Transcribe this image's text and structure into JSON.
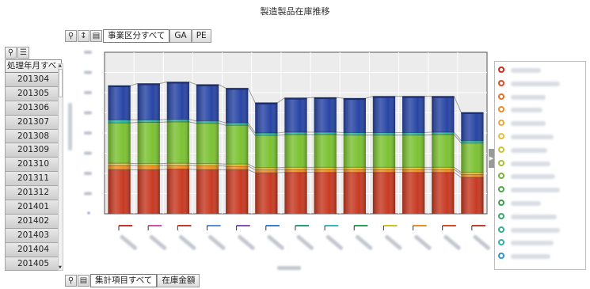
{
  "title": "製造製品在庫推移",
  "top_filter": {
    "dimension_label": "事業区分すべて",
    "chips": [
      "GA",
      "PE"
    ]
  },
  "bottom_filter": {
    "dimension_label": "集計項目すべて",
    "chip": "在庫金額"
  },
  "sidebar": {
    "header": "処理年月すべ",
    "items": [
      "201304",
      "201305",
      "201306",
      "201307",
      "201308",
      "201309",
      "201310",
      "201311",
      "201312",
      "201401",
      "201402",
      "201403",
      "201404",
      "201405"
    ]
  },
  "icons": {
    "magnify": "magnifier-icon",
    "sort": "sort-icon",
    "chart": "bar-chart-icon",
    "list": "list-icon"
  },
  "chart_data": {
    "type": "bar",
    "stacked": true,
    "categories": [
      "",
      "",
      "",
      "",
      "",
      "",
      "",
      "",
      "",
      "",
      "",
      "",
      ""
    ],
    "ylim": [
      0,
      800
    ],
    "grid": true,
    "legend": "right",
    "series": [
      {
        "color": "#c83a22",
        "values": [
          218,
          218,
          221,
          218,
          218,
          203,
          205,
          205,
          205,
          205,
          205,
          205,
          180
        ]
      },
      {
        "color": "#ee8f23",
        "values": [
          22,
          20,
          19,
          20,
          18,
          15,
          15,
          15,
          15,
          15,
          15,
          15,
          15
        ]
      },
      {
        "color": "#f0d23c",
        "values": [
          10,
          10,
          10,
          10,
          10,
          10,
          10,
          10,
          10,
          10,
          10,
          10,
          10
        ]
      },
      {
        "color": "#7cc233",
        "values": [
          200,
          205,
          205,
          200,
          192,
          160,
          162,
          162,
          160,
          160,
          160,
          162,
          145
        ]
      },
      {
        "color": "#2db7a0",
        "values": [
          15,
          12,
          12,
          12,
          12,
          12,
          12,
          12,
          12,
          12,
          12,
          12,
          12
        ]
      },
      {
        "color": "#2845a5",
        "values": [
          170,
          180,
          186,
          180,
          172,
          150,
          170,
          172,
          170,
          180,
          180,
          178,
          140
        ]
      }
    ],
    "axis_line_colors": [
      "#c9302c",
      "#d24fa8",
      "#c23a2c",
      "#5a8fd2",
      "#8a4fbf",
      "#3a7bd5",
      "#2aa07a",
      "#3ab8c0",
      "#2aa05a",
      "#d0c020",
      "#e89020",
      "#d84a2a",
      "#c04030"
    ],
    "legend_colors": [
      "#d42a1d",
      "#df4a21",
      "#e8702a",
      "#ec8a2e",
      "#f0a638",
      "#e8bf3a",
      "#cfc33a",
      "#a6bf34",
      "#74b53b",
      "#4ea844",
      "#3da04e",
      "#39a86a",
      "#35b08c",
      "#37b0b4",
      "#3591c9"
    ]
  }
}
